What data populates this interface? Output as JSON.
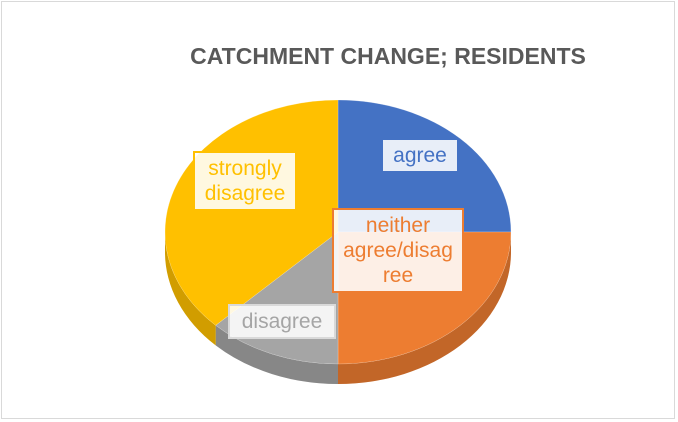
{
  "chart_data": {
    "type": "pie3d",
    "title": "CATCHMENT CHANGE; RESIDENTS",
    "categories": [
      "agree",
      "neither agree/disagree",
      "disagree",
      "strongly disagree"
    ],
    "values": [
      25,
      25,
      12.5,
      37.5
    ],
    "colors": [
      "#4472c4",
      "#ed7d31",
      "#a5a5a5",
      "#ffc000"
    ]
  }
}
